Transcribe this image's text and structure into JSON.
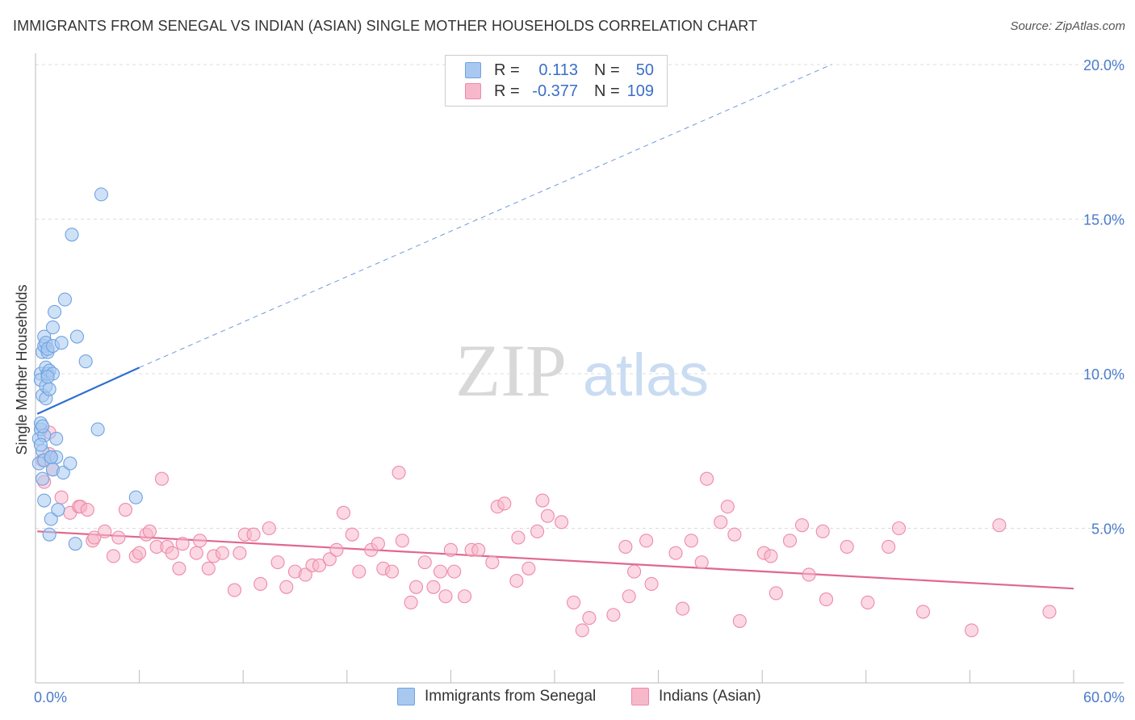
{
  "title": "IMMIGRANTS FROM SENEGAL VS INDIAN (ASIAN) SINGLE MOTHER HOUSEHOLDS CORRELATION CHART",
  "source": "Source: ZipAtlas.com",
  "watermark": {
    "zip": "ZIP",
    "atlas": "atlas"
  },
  "legend": {
    "r_label": "R =",
    "n_label": "N =",
    "rows": [
      {
        "r": "0.113",
        "n": "50",
        "swatch": "#a8c8f0"
      },
      {
        "r": "-0.377",
        "n": "109",
        "swatch": "#f7b8cc"
      }
    ]
  },
  "bottom_legend": [
    "Immigrants from Senegal",
    "Indians (Asian)"
  ],
  "chart_data": {
    "type": "scatter",
    "ylabel": "Single Mother Households",
    "xlim": [
      0,
      60
    ],
    "ylim": [
      0,
      20
    ],
    "x_tick_labels": [
      "0.0%",
      "60.0%"
    ],
    "y_tick_labels": [
      "5.0%",
      "10.0%",
      "15.0%",
      "20.0%"
    ],
    "y_ticks": [
      5,
      10,
      15,
      20
    ],
    "grid": true,
    "legend_position": "top-center",
    "series": [
      {
        "name": "Immigrants from Senegal",
        "color": "#6fa3e0",
        "fill": "#a8c8f0",
        "trend": {
          "x0": 0.1,
          "y0": 8.7,
          "x1": 6.0,
          "y1": 10.2,
          "x_dash_end": 46.0,
          "y_dash_end": 20.0,
          "color": "#2f6fcf"
        },
        "points": [
          [
            0.2,
            7.1
          ],
          [
            0.2,
            7.9
          ],
          [
            0.3,
            8.2
          ],
          [
            0.3,
            8.4
          ],
          [
            0.3,
            10.0
          ],
          [
            0.3,
            9.8
          ],
          [
            0.4,
            7.5
          ],
          [
            0.4,
            9.3
          ],
          [
            0.4,
            6.6
          ],
          [
            0.4,
            10.7
          ],
          [
            0.5,
            10.9
          ],
          [
            0.5,
            11.2
          ],
          [
            0.5,
            8.0
          ],
          [
            0.5,
            7.2
          ],
          [
            0.5,
            5.9
          ],
          [
            0.6,
            9.6
          ],
          [
            0.6,
            9.2
          ],
          [
            0.6,
            10.2
          ],
          [
            0.6,
            11.0
          ],
          [
            0.7,
            10.7
          ],
          [
            0.7,
            10.0
          ],
          [
            0.7,
            10.8
          ],
          [
            0.8,
            10.1
          ],
          [
            0.8,
            9.5
          ],
          [
            0.8,
            4.8
          ],
          [
            0.9,
            7.3
          ],
          [
            0.9,
            5.3
          ],
          [
            1.0,
            6.9
          ],
          [
            1.0,
            11.5
          ],
          [
            1.0,
            10.9
          ],
          [
            1.0,
            10.0
          ],
          [
            1.1,
            12.0
          ],
          [
            1.2,
            7.9
          ],
          [
            1.2,
            7.3
          ],
          [
            1.3,
            5.6
          ],
          [
            1.5,
            11.0
          ],
          [
            1.6,
            6.8
          ],
          [
            1.7,
            12.4
          ],
          [
            2.0,
            7.1
          ],
          [
            2.1,
            14.5
          ],
          [
            2.3,
            4.5
          ],
          [
            2.4,
            11.2
          ],
          [
            2.9,
            10.4
          ],
          [
            3.6,
            8.2
          ],
          [
            3.8,
            15.8
          ],
          [
            5.8,
            6.0
          ],
          [
            0.3,
            7.7
          ],
          [
            0.4,
            8.3
          ],
          [
            0.7,
            9.9
          ],
          [
            0.9,
            7.3
          ]
        ]
      },
      {
        "name": "Indians (Asian)",
        "color": "#ee8aa9",
        "fill": "#f7b8cc",
        "trend": {
          "x0": 0.1,
          "y0": 4.9,
          "x1": 60.0,
          "y1": 3.05,
          "color": "#e0678f"
        },
        "points": [
          [
            0.5,
            6.5
          ],
          [
            0.8,
            7.4
          ],
          [
            0.8,
            8.1
          ],
          [
            1.0,
            6.9
          ],
          [
            1.5,
            6.0
          ],
          [
            2.0,
            5.5
          ],
          [
            2.5,
            5.7
          ],
          [
            2.6,
            5.7
          ],
          [
            3.3,
            4.6
          ],
          [
            3.4,
            4.7
          ],
          [
            4.0,
            4.9
          ],
          [
            4.5,
            4.1
          ],
          [
            4.8,
            4.7
          ],
          [
            5.2,
            5.6
          ],
          [
            5.8,
            4.1
          ],
          [
            6.0,
            4.2
          ],
          [
            6.4,
            4.8
          ],
          [
            6.6,
            4.9
          ],
          [
            7.0,
            4.4
          ],
          [
            7.3,
            6.6
          ],
          [
            7.6,
            4.4
          ],
          [
            7.9,
            4.2
          ],
          [
            8.3,
            3.7
          ],
          [
            8.5,
            4.5
          ],
          [
            9.3,
            4.2
          ],
          [
            9.5,
            4.6
          ],
          [
            10.0,
            3.7
          ],
          [
            10.3,
            4.1
          ],
          [
            10.8,
            4.2
          ],
          [
            11.5,
            3.0
          ],
          [
            12.1,
            4.8
          ],
          [
            12.6,
            4.8
          ],
          [
            13.0,
            3.2
          ],
          [
            13.5,
            5.0
          ],
          [
            14.0,
            3.9
          ],
          [
            14.5,
            3.1
          ],
          [
            15.0,
            3.6
          ],
          [
            15.6,
            3.5
          ],
          [
            16.0,
            3.8
          ],
          [
            16.4,
            3.8
          ],
          [
            17.0,
            4.0
          ],
          [
            17.4,
            4.3
          ],
          [
            17.8,
            5.5
          ],
          [
            18.3,
            4.8
          ],
          [
            18.7,
            3.6
          ],
          [
            19.4,
            4.3
          ],
          [
            19.8,
            4.5
          ],
          [
            20.1,
            3.7
          ],
          [
            20.6,
            3.6
          ],
          [
            21.0,
            6.8
          ],
          [
            21.2,
            4.6
          ],
          [
            21.7,
            2.6
          ],
          [
            22.0,
            3.1
          ],
          [
            22.5,
            3.9
          ],
          [
            23.0,
            3.1
          ],
          [
            23.4,
            3.6
          ],
          [
            23.7,
            2.8
          ],
          [
            24.2,
            3.6
          ],
          [
            24.8,
            2.8
          ],
          [
            25.2,
            4.3
          ],
          [
            25.6,
            4.3
          ],
          [
            26.4,
            3.9
          ],
          [
            26.7,
            5.7
          ],
          [
            27.1,
            5.8
          ],
          [
            27.9,
            4.7
          ],
          [
            27.8,
            3.3
          ],
          [
            28.5,
            3.7
          ],
          [
            29.0,
            4.9
          ],
          [
            29.3,
            5.9
          ],
          [
            29.6,
            5.4
          ],
          [
            30.4,
            5.2
          ],
          [
            31.1,
            2.6
          ],
          [
            31.6,
            1.7
          ],
          [
            32.0,
            2.1
          ],
          [
            33.4,
            2.2
          ],
          [
            34.1,
            4.4
          ],
          [
            34.3,
            2.8
          ],
          [
            34.6,
            3.6
          ],
          [
            35.3,
            4.6
          ],
          [
            35.6,
            3.2
          ],
          [
            37.0,
            4.2
          ],
          [
            37.4,
            2.4
          ],
          [
            37.9,
            4.6
          ],
          [
            38.5,
            3.9
          ],
          [
            38.8,
            6.6
          ],
          [
            39.6,
            5.2
          ],
          [
            40.0,
            5.7
          ],
          [
            40.4,
            4.8
          ],
          [
            40.7,
            2.0
          ],
          [
            42.1,
            4.2
          ],
          [
            42.5,
            4.1
          ],
          [
            42.8,
            2.9
          ],
          [
            43.6,
            4.6
          ],
          [
            44.3,
            5.1
          ],
          [
            44.7,
            3.5
          ],
          [
            45.5,
            4.9
          ],
          [
            45.7,
            2.7
          ],
          [
            46.9,
            4.4
          ],
          [
            48.1,
            2.6
          ],
          [
            49.3,
            4.4
          ],
          [
            49.9,
            5.0
          ],
          [
            51.3,
            2.3
          ],
          [
            54.1,
            1.7
          ],
          [
            55.7,
            5.1
          ],
          [
            58.6,
            2.3
          ],
          [
            3.0,
            5.6
          ],
          [
            11.8,
            4.2
          ],
          [
            24.0,
            4.3
          ],
          [
            0.4,
            7.2
          ]
        ]
      }
    ]
  }
}
